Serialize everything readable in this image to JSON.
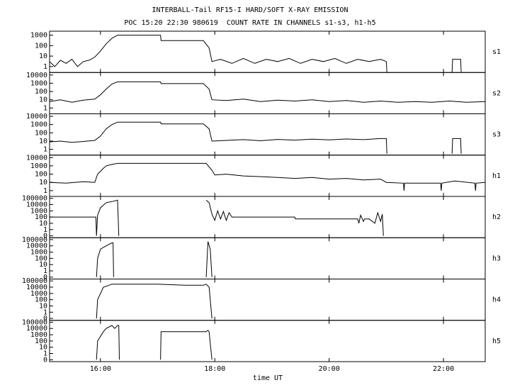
{
  "title": "INTERBALL-Tail RF15-I HARD/SOFT X-RAY EMISSION",
  "subtitle": "POC 15:20 22:30 980619  COUNT RATE IN CHANNELS s1-s3, h1-h5",
  "x_axis": {
    "label": "time UT",
    "xlim": [
      15.11,
      22.73
    ],
    "xticks": [
      {
        "value": 16,
        "label": "16:00"
      },
      {
        "value": 18,
        "label": "18:00"
      },
      {
        "value": 20,
        "label": "20:00"
      },
      {
        "value": 22,
        "label": "22:00"
      }
    ]
  },
  "chart_data": [
    {
      "type": "line",
      "title": "s1",
      "log": true,
      "ylim": [
        0.27,
        2400
      ],
      "yticks": [
        1,
        10,
        100,
        1000
      ],
      "series": [
        {
          "color": "#000000",
          "x": [
            15.11,
            15.2,
            15.3,
            15.4,
            15.5,
            15.6,
            15.7,
            15.8,
            15.9,
            16.0,
            16.1,
            16.2,
            16.3,
            17.05,
            17.06,
            17.8,
            17.9,
            17.95,
            18.1,
            18.3,
            18.5,
            18.7,
            18.9,
            19.1,
            19.3,
            19.5,
            19.7,
            19.9,
            20.1,
            20.3,
            20.5,
            20.7,
            20.9,
            21.0,
            21.01,
            21.5,
            22.15,
            22.16,
            22.3,
            22.31
          ],
          "values": [
            3,
            1,
            4,
            2,
            5,
            1,
            3,
            4,
            8,
            30,
            150,
            500,
            1000,
            1000,
            300,
            300,
            60,
            3,
            5,
            2,
            6,
            2,
            5,
            3,
            6,
            2,
            5,
            3,
            6,
            2,
            5,
            3,
            5,
            3,
            0.3,
            null,
            0.3,
            5,
            5,
            0.3
          ]
        }
      ]
    },
    {
      "type": "line",
      "title": "s2",
      "log": true,
      "ylim": [
        0.2,
        20000
      ],
      "yticks": [
        1,
        10,
        100,
        1000,
        10000
      ],
      "series": [
        {
          "color": "#000000",
          "x": [
            15.11,
            15.3,
            15.5,
            15.7,
            15.9,
            16.0,
            16.1,
            16.2,
            16.3,
            17.05,
            17.06,
            17.8,
            17.9,
            17.95,
            18.2,
            18.5,
            18.8,
            19.1,
            19.4,
            19.7,
            20.0,
            20.3,
            20.6,
            20.9,
            21.2,
            21.5,
            21.8,
            22.1,
            22.4,
            22.73
          ],
          "values": [
            6,
            10,
            5,
            9,
            12,
            40,
            200,
            800,
            1500,
            1500,
            900,
            900,
            200,
            10,
            8,
            12,
            6,
            9,
            7,
            10,
            6,
            8,
            5,
            7,
            5,
            6,
            5,
            7,
            5,
            6
          ]
        }
      ]
    },
    {
      "type": "line",
      "title": "s3",
      "log": true,
      "ylim": [
        0.2,
        20000
      ],
      "yticks": [
        1,
        10,
        100,
        1000,
        10000
      ],
      "series": [
        {
          "color": "#000000",
          "x": [
            15.11,
            15.3,
            15.5,
            15.7,
            15.9,
            16.0,
            16.1,
            16.2,
            16.3,
            17.05,
            17.06,
            17.8,
            17.9,
            17.95,
            18.2,
            18.5,
            18.8,
            19.1,
            19.4,
            19.7,
            20.0,
            20.3,
            20.6,
            20.9,
            21.0,
            21.01,
            21.5,
            22.15,
            22.16,
            22.3,
            22.31
          ],
          "values": [
            8,
            10,
            7,
            9,
            12,
            40,
            300,
            1000,
            2000,
            2000,
            1200,
            1200,
            300,
            10,
            12,
            15,
            11,
            16,
            13,
            17,
            14,
            18,
            15,
            20,
            20,
            0.3,
            null,
            0.3,
            20,
            20,
            0.3
          ]
        }
      ]
    },
    {
      "type": "line",
      "title": "h1",
      "log": true,
      "ylim": [
        0.2,
        20000
      ],
      "yticks": [
        1,
        10,
        100,
        1000,
        10000
      ],
      "series": [
        {
          "color": "#000000",
          "x": [
            15.11,
            15.4,
            15.7,
            15.9,
            15.95,
            16.05,
            16.1,
            16.2,
            16.3,
            17.0,
            17.5,
            17.85,
            17.95,
            18.0,
            18.2,
            18.5,
            18.8,
            19.1,
            19.4,
            19.7,
            20.0,
            20.3,
            20.6,
            20.9,
            21.0,
            21.3,
            21.31,
            21.32,
            21.6,
            21.95,
            21.96,
            21.97,
            22.2,
            22.55,
            22.56,
            22.57,
            22.73
          ],
          "values": [
            10,
            8,
            12,
            10,
            100,
            500,
            1000,
            1500,
            2000,
            2000,
            2000,
            2000,
            300,
            80,
            100,
            60,
            50,
            40,
            30,
            40,
            25,
            30,
            20,
            25,
            10,
            8,
            1,
            8,
            8,
            8,
            1,
            8,
            15,
            8,
            1,
            8,
            10
          ]
        }
      ]
    },
    {
      "type": "line",
      "title": "h2",
      "log": true,
      "ylim": [
        0.05,
        200000
      ],
      "yticks": [
        {
          "value": 0.1,
          "label": "0"
        },
        1,
        10,
        100,
        1000,
        10000,
        100000
      ],
      "series": [
        {
          "color": "#000000",
          "x": [
            15.11,
            15.92,
            15.93,
            15.95,
            16.0,
            16.1,
            16.2,
            16.3,
            16.32,
            16.8,
            17.85,
            17.9,
            17.95,
            18.0,
            18.05,
            18.1,
            18.15,
            18.2,
            18.25,
            18.3,
            18.31,
            19.4,
            19.41,
            20.5,
            20.52,
            20.55,
            20.6,
            20.62,
            20.7,
            20.8,
            20.85,
            20.9,
            20.93,
            20.95
          ],
          "values": [
            100,
            100,
            0.1,
            200,
            3000,
            20000,
            30000,
            50000,
            0.1,
            null,
            50000,
            20000,
            300,
            30,
            1000,
            50,
            800,
            30,
            500,
            100,
            100,
            100,
            50,
            50,
            10,
            200,
            20,
            50,
            50,
            10,
            500,
            20,
            300,
            0.1
          ]
        }
      ]
    },
    {
      "type": "line",
      "title": "h3",
      "log": true,
      "ylim": [
        0.05,
        200000
      ],
      "yticks": [
        {
          "value": 0.1,
          "label": "0"
        },
        1,
        10,
        100,
        1000,
        10000,
        100000
      ],
      "series": [
        {
          "color": "#000000",
          "x": [
            15.93,
            15.95,
            16.0,
            16.1,
            16.2,
            16.22,
            16.23,
            17.0,
            17.85,
            17.88,
            17.92,
            17.95
          ],
          "values": [
            0.1,
            100,
            3000,
            10000,
            30000,
            30000,
            0.1,
            null,
            0.1,
            50000,
            3000,
            0.1
          ]
        }
      ]
    },
    {
      "type": "line",
      "title": "h4",
      "log": true,
      "ylim": [
        0.05,
        200000
      ],
      "yticks": [
        {
          "value": 0.1,
          "label": "0"
        },
        1,
        10,
        100,
        1000,
        10000,
        100000
      ],
      "series": [
        {
          "color": "#000000",
          "x": [
            15.93,
            15.95,
            16.05,
            16.15,
            16.2,
            16.5,
            17.0,
            17.5,
            17.8,
            17.85,
            17.9,
            17.95
          ],
          "values": [
            0.1,
            100,
            10000,
            20000,
            30000,
            30000,
            30000,
            20000,
            20000,
            30000,
            10000,
            0.1
          ]
        }
      ]
    },
    {
      "type": "line",
      "title": "h5",
      "log": true,
      "ylim": [
        0.05,
        200000
      ],
      "yticks": [
        {
          "value": 0.1,
          "label": "0"
        },
        1,
        10,
        100,
        1000,
        10000,
        100000
      ],
      "series": [
        {
          "color": "#000000",
          "x": [
            15.93,
            15.95,
            16.05,
            16.1,
            16.2,
            16.25,
            16.3,
            16.32,
            16.33,
            16.8,
            17.05,
            17.06,
            17.85,
            17.88,
            17.9,
            17.95
          ],
          "values": [
            0.1,
            100,
            3000,
            10000,
            30000,
            10000,
            30000,
            30000,
            0.1,
            null,
            0.1,
            3000,
            3000,
            5000,
            3000,
            0.1
          ]
        }
      ]
    }
  ]
}
